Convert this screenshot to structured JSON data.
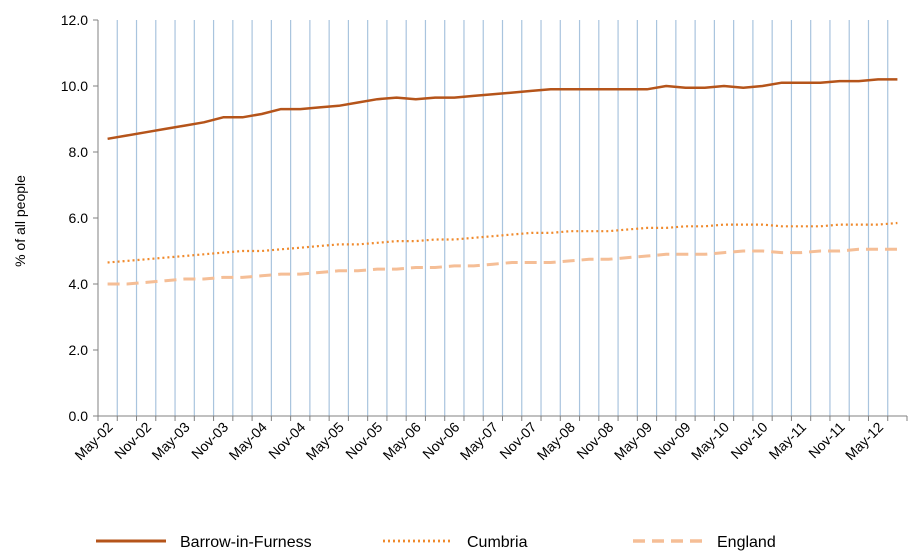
{
  "chart_data": {
    "type": "line",
    "title": "",
    "xlabel": "",
    "ylabel": "% of all people",
    "ylim": [
      0,
      12
    ],
    "yticks": [
      "0.0",
      "2.0",
      "4.0",
      "6.0",
      "8.0",
      "10.0",
      "12.0"
    ],
    "x": [
      "May-02",
      "Aug-02",
      "Nov-02",
      "Feb-03",
      "May-03",
      "Aug-03",
      "Nov-03",
      "Feb-04",
      "May-04",
      "Aug-04",
      "Nov-04",
      "Feb-05",
      "May-05",
      "Aug-05",
      "Nov-05",
      "Feb-06",
      "May-06",
      "Aug-06",
      "Nov-06",
      "Feb-07",
      "May-07",
      "Aug-07",
      "Nov-07",
      "Feb-08",
      "May-08",
      "Aug-08",
      "Nov-08",
      "Feb-09",
      "May-09",
      "Aug-09",
      "Nov-09",
      "Feb-10",
      "May-10",
      "Aug-10",
      "Nov-10",
      "Feb-11",
      "May-11",
      "Aug-11",
      "Nov-11",
      "Feb-12",
      "May-12",
      "Aug-12"
    ],
    "xtick_labels": [
      "May-02",
      "Nov-02",
      "May-03",
      "Nov-03",
      "May-04",
      "Nov-04",
      "May-05",
      "Nov-05",
      "May-06",
      "Nov-06",
      "May-07",
      "Nov-07",
      "May-08",
      "Nov-08",
      "May-09",
      "Nov-09",
      "May-10",
      "Nov-10",
      "May-11",
      "Nov-11",
      "May-12"
    ],
    "grid": "vertical",
    "legend_position": "bottom",
    "series": [
      {
        "name": "Barrow-in-Furness",
        "color": "#B5541A",
        "style": "solid",
        "values": [
          8.4,
          8.5,
          8.6,
          8.7,
          8.8,
          8.9,
          9.05,
          9.05,
          9.15,
          9.3,
          9.3,
          9.35,
          9.4,
          9.5,
          9.6,
          9.65,
          9.6,
          9.65,
          9.65,
          9.7,
          9.75,
          9.8,
          9.85,
          9.9,
          9.9,
          9.9,
          9.9,
          9.9,
          9.9,
          10.0,
          9.95,
          9.95,
          10.0,
          9.95,
          10.0,
          10.1,
          10.1,
          10.1,
          10.15,
          10.15,
          10.2,
          10.2
        ]
      },
      {
        "name": "Cumbria",
        "color": "#F08A2C",
        "style": "dotted",
        "values": [
          4.65,
          4.7,
          4.75,
          4.8,
          4.85,
          4.9,
          4.95,
          5.0,
          5.0,
          5.05,
          5.1,
          5.15,
          5.2,
          5.2,
          5.25,
          5.3,
          5.3,
          5.35,
          5.35,
          5.4,
          5.45,
          5.5,
          5.55,
          5.55,
          5.6,
          5.6,
          5.6,
          5.65,
          5.7,
          5.7,
          5.75,
          5.75,
          5.8,
          5.8,
          5.8,
          5.75,
          5.75,
          5.75,
          5.8,
          5.8,
          5.8,
          5.85
        ]
      },
      {
        "name": "England",
        "color": "#F5BE96",
        "style": "dashed",
        "values": [
          4.0,
          4.0,
          4.05,
          4.1,
          4.15,
          4.15,
          4.2,
          4.2,
          4.25,
          4.3,
          4.3,
          4.35,
          4.4,
          4.4,
          4.45,
          4.45,
          4.5,
          4.5,
          4.55,
          4.55,
          4.6,
          4.65,
          4.65,
          4.65,
          4.7,
          4.75,
          4.75,
          4.8,
          4.85,
          4.9,
          4.9,
          4.9,
          4.95,
          5.0,
          5.0,
          4.95,
          4.95,
          5.0,
          5.0,
          5.05,
          5.05,
          5.05
        ]
      }
    ]
  }
}
